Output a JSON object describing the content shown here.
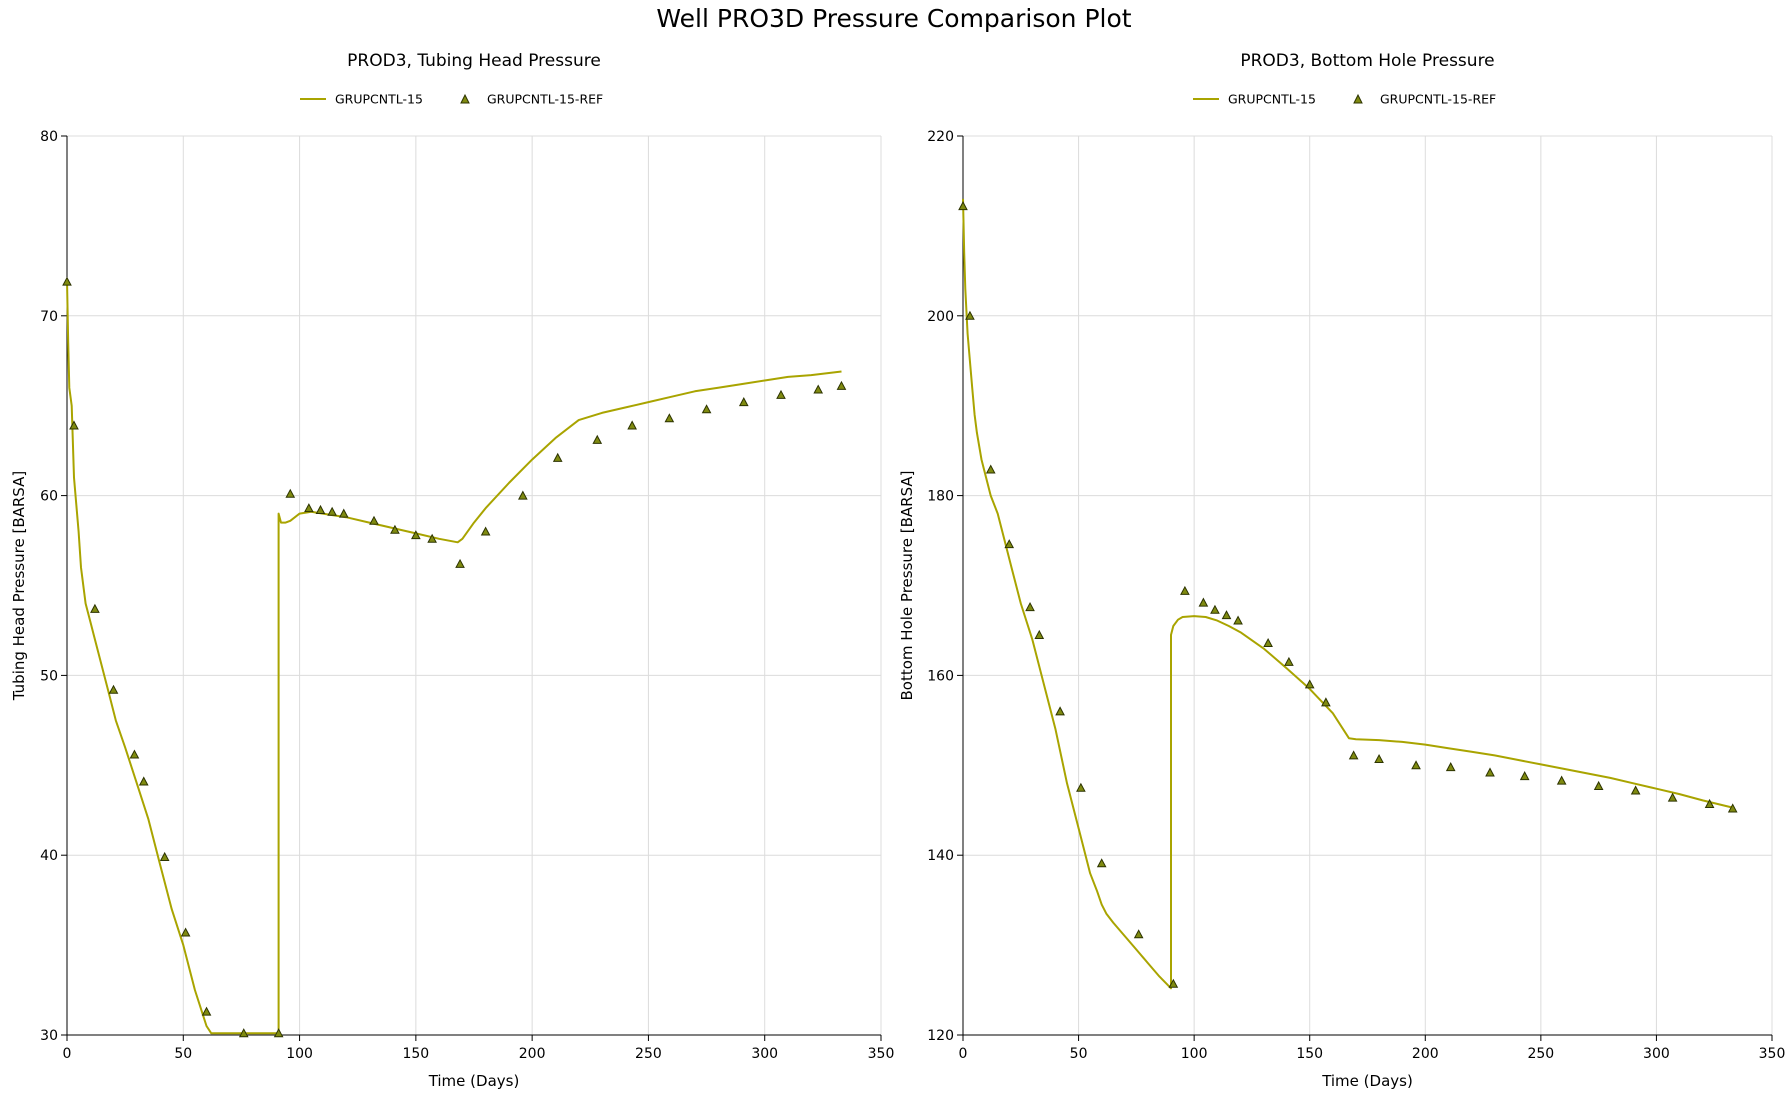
{
  "title": "Well PRO3D Pressure Comparison Plot",
  "colors": {
    "line": "#a9a400",
    "marker_fill": "#7f8a10",
    "marker_stroke": "#2c3300",
    "grid": "#dcdcdc"
  },
  "chart_data": [
    {
      "type": "line",
      "title": "PROD3, Tubing Head Pressure",
      "xlabel": "Time (Days)",
      "ylabel": "Tubing Head Pressure [BARSA]",
      "xlim": [
        0,
        350
      ],
      "ylim": [
        30,
        80
      ],
      "xticks": [
        0,
        50,
        100,
        150,
        200,
        250,
        300,
        350
      ],
      "yticks": [
        30,
        40,
        50,
        60,
        70,
        80
      ],
      "grid": true,
      "legend_position": "top-center",
      "series": [
        {
          "name": "GRUPCNTL-15",
          "style": "line",
          "x": [
            0,
            0.5,
            1,
            1.5,
            2,
            3,
            4,
            5,
            6,
            8,
            10,
            12,
            15,
            18,
            21,
            25,
            30,
            35,
            40,
            45,
            50,
            55,
            60,
            62,
            65,
            70,
            80,
            91,
            91,
            92,
            94,
            96,
            100,
            105,
            110,
            120,
            130,
            140,
            150,
            160,
            168,
            170,
            175,
            180,
            190,
            200,
            210,
            220,
            230,
            240,
            250,
            260,
            270,
            280,
            290,
            300,
            310,
            320,
            333
          ],
          "y": [
            72,
            68.5,
            66,
            65.5,
            65,
            61,
            59.5,
            58,
            56,
            54,
            53,
            52,
            50.5,
            49,
            47.5,
            46,
            44,
            42,
            39.5,
            37,
            35,
            32.5,
            30.5,
            30.1,
            30.1,
            30.1,
            30.1,
            30.1,
            59,
            58.5,
            58.5,
            58.6,
            59,
            59.1,
            59,
            58.8,
            58.5,
            58.2,
            57.9,
            57.6,
            57.4,
            57.6,
            58.5,
            59.3,
            60.7,
            62,
            63.2,
            64.2,
            64.6,
            64.9,
            65.2,
            65.5,
            65.8,
            66,
            66.2,
            66.4,
            66.6,
            66.7,
            66.9
          ]
        },
        {
          "name": "GRUPCNTL-15-REF",
          "style": "markers",
          "x": [
            0,
            3,
            12,
            20,
            29,
            33,
            42,
            51,
            60,
            76,
            91,
            96,
            104,
            109,
            114,
            119,
            132,
            141,
            150,
            157,
            169,
            180,
            196,
            211,
            228,
            243,
            259,
            275,
            291,
            307,
            323,
            333
          ],
          "y": [
            71.9,
            63.9,
            53.7,
            49.2,
            45.6,
            44.1,
            39.9,
            35.7,
            31.3,
            30.1,
            30.1,
            60.1,
            59.3,
            59.2,
            59.1,
            59,
            58.6,
            58.1,
            57.8,
            57.6,
            56.2,
            58,
            60,
            62.1,
            63.1,
            63.9,
            64.3,
            64.8,
            65.2,
            65.6,
            65.9,
            66.1
          ]
        }
      ]
    },
    {
      "type": "line",
      "title": "PROD3, Bottom Hole Pressure",
      "xlabel": "Time (Days)",
      "ylabel": "Bottom Hole Pressure [BARSA]",
      "xlim": [
        0,
        350
      ],
      "ylim": [
        120,
        220
      ],
      "xticks": [
        0,
        50,
        100,
        150,
        200,
        250,
        300,
        350
      ],
      "yticks": [
        120,
        140,
        160,
        180,
        200,
        220
      ],
      "grid": true,
      "legend_position": "top-center",
      "series": [
        {
          "name": "GRUPCNTL-15",
          "style": "line",
          "x": [
            0,
            0.5,
            1,
            2,
            3,
            4,
            5,
            6,
            8,
            10,
            12,
            15,
            18,
            21,
            25,
            30,
            35,
            40,
            45,
            50,
            55,
            58,
            60,
            62,
            65,
            70,
            75,
            80,
            85,
            90,
            90,
            91,
            93,
            95,
            100,
            105,
            110,
            115,
            120,
            130,
            140,
            150,
            160,
            167,
            170,
            180,
            190,
            200,
            210,
            220,
            230,
            240,
            250,
            260,
            270,
            280,
            290,
            300,
            310,
            320,
            333
          ],
          "y": [
            213,
            207,
            203,
            198,
            195,
            192,
            189,
            187,
            184,
            182,
            180,
            178,
            175,
            172,
            168,
            164,
            159,
            154,
            148,
            143,
            138,
            136,
            134.5,
            133.5,
            132.5,
            131,
            129.5,
            128,
            126.5,
            125.2,
            164.5,
            165.5,
            166.2,
            166.5,
            166.6,
            166.5,
            166.1,
            165.5,
            164.8,
            163,
            160.8,
            158.5,
            155.8,
            153,
            152.9,
            152.8,
            152.6,
            152.3,
            151.9,
            151.5,
            151.1,
            150.6,
            150.1,
            149.6,
            149.1,
            148.6,
            148,
            147.4,
            146.8,
            146.1,
            145.3
          ]
        },
        {
          "name": "GRUPCNTL-15-REF",
          "style": "markers",
          "x": [
            0,
            3,
            12,
            20,
            29,
            33,
            42,
            51,
            60,
            76,
            91,
            96,
            104,
            109,
            114,
            119,
            132,
            141,
            150,
            157,
            169,
            180,
            196,
            211,
            228,
            243,
            259,
            275,
            291,
            307,
            323,
            333
          ],
          "y": [
            212.2,
            200,
            182.9,
            174.6,
            167.6,
            164.5,
            156,
            147.5,
            139.1,
            131.2,
            125.7,
            169.4,
            168.1,
            167.3,
            166.7,
            166.1,
            163.6,
            161.5,
            159,
            157,
            151.1,
            150.7,
            150,
            149.8,
            149.2,
            148.8,
            148.3,
            147.7,
            147.2,
            146.4,
            145.7,
            145.2
          ]
        }
      ]
    }
  ]
}
